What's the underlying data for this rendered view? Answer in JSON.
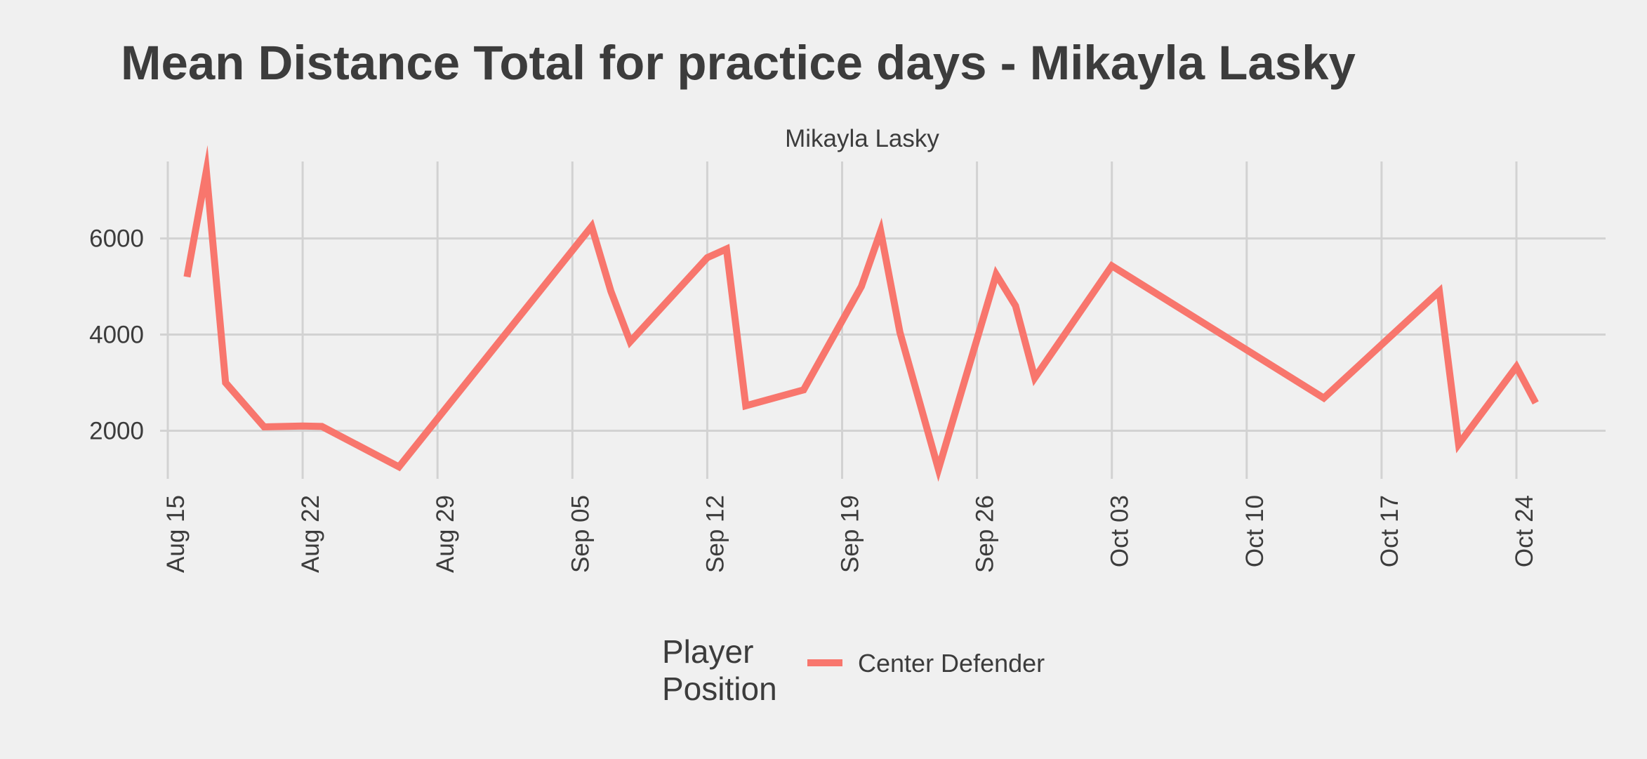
{
  "chart_data": {
    "type": "line",
    "title": "Mean Distance Total for practice days -  Mikayla Lasky",
    "subtitle": "Mikayla Lasky",
    "xlabel": "",
    "ylabel": "",
    "x_axis": {
      "type": "date",
      "range": [
        "2024-08-15",
        "2024-10-26"
      ],
      "ticks": [
        "2024-08-15",
        "2024-08-22",
        "2024-08-29",
        "2024-09-05",
        "2024-09-12",
        "2024-09-19",
        "2024-09-26",
        "2024-10-03",
        "2024-10-10",
        "2024-10-17",
        "2024-10-24"
      ],
      "tick_labels": [
        "Aug 15",
        "Aug 22",
        "Aug 29",
        "Sep 05",
        "Sep 12",
        "Sep 19",
        "Sep 26",
        "Oct 03",
        "Oct 10",
        "Oct 17",
        "Oct 24"
      ]
    },
    "y_axis": {
      "range": [
        1000,
        7600
      ],
      "ticks": [
        2000,
        4000,
        6000
      ],
      "tick_labels": [
        "2000",
        "4000",
        "6000"
      ]
    },
    "grid": true,
    "legend": {
      "title": "Player\nPosition",
      "placement": "bottom"
    },
    "series": [
      {
        "name": "Center Defender",
        "color": "#f8766d",
        "points": [
          {
            "x": "2024-08-16",
            "y": 5200
          },
          {
            "x": "2024-08-17",
            "y": 7400
          },
          {
            "x": "2024-08-18",
            "y": 3000
          },
          {
            "x": "2024-08-20",
            "y": 2080
          },
          {
            "x": "2024-08-22",
            "y": 2100
          },
          {
            "x": "2024-08-23",
            "y": 2090
          },
          {
            "x": "2024-08-27",
            "y": 1250
          },
          {
            "x": "2024-09-06",
            "y": 6250
          },
          {
            "x": "2024-09-07",
            "y": 4900
          },
          {
            "x": "2024-09-08",
            "y": 3850
          },
          {
            "x": "2024-09-12",
            "y": 5600
          },
          {
            "x": "2024-09-13",
            "y": 5780
          },
          {
            "x": "2024-09-14",
            "y": 2520
          },
          {
            "x": "2024-09-17",
            "y": 2850
          },
          {
            "x": "2024-09-20",
            "y": 5000
          },
          {
            "x": "2024-09-21",
            "y": 6150
          },
          {
            "x": "2024-09-22",
            "y": 4050
          },
          {
            "x": "2024-09-24",
            "y": 1200
          },
          {
            "x": "2024-09-27",
            "y": 5250
          },
          {
            "x": "2024-09-28",
            "y": 4600
          },
          {
            "x": "2024-09-29",
            "y": 3100
          },
          {
            "x": "2024-10-03",
            "y": 5430
          },
          {
            "x": "2024-10-14",
            "y": 2680
          },
          {
            "x": "2024-10-20",
            "y": 4900
          },
          {
            "x": "2024-10-21",
            "y": 1720
          },
          {
            "x": "2024-10-24",
            "y": 3330
          },
          {
            "x": "2024-10-25",
            "y": 2580
          }
        ]
      }
    ]
  }
}
